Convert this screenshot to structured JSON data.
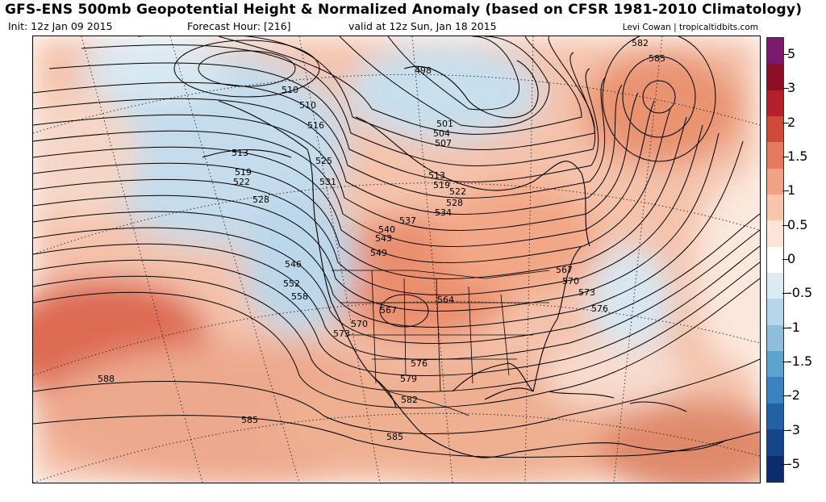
{
  "header": {
    "title": "GFS-ENS 500mb Geopotential Height & Normalized Anomaly (based on CFSR 1981-2010 Climatology)",
    "init": "Init: 12z Jan 09 2015",
    "forecast_hour": "Forecast Hour: [216]",
    "valid": "valid at 12z Sun, Jan 18 2015",
    "credit": "Levi Cowan | tropicaltidbits.com"
  },
  "colors": {
    "ocean_warm": "#f2b8a0",
    "deep_warm": "#d9604a",
    "cold": "#b9d6ea",
    "neutral": "#f7f4f2",
    "contour": "#000000"
  },
  "colorbar": {
    "colors": [
      "#7b1a6e",
      "#8b1023",
      "#b5202a",
      "#cf4a3b",
      "#e57a5e",
      "#f2a185",
      "#f8c4ac",
      "#fce4d6",
      "#ffffff",
      "#dceaf4",
      "#b8d6ea",
      "#8dbfdd",
      "#5da3cf",
      "#3a83bf",
      "#2262a4",
      "#16468a",
      "#0b2d6e"
    ],
    "labels": [
      "5",
      "3",
      "2",
      "1.5",
      "1",
      "0.5",
      "0",
      "-0.5",
      "-1",
      "-1.5",
      "-2",
      "-3",
      "-5"
    ]
  },
  "contour_labels": [
    "582",
    "585",
    "498",
    "510",
    "510",
    "516",
    "513",
    "519",
    "522",
    "528",
    "525",
    "531",
    "501",
    "504",
    "507",
    "513",
    "519",
    "522",
    "528",
    "534",
    "537",
    "540",
    "543",
    "549",
    "546",
    "552",
    "558",
    "567",
    "570",
    "573",
    "564",
    "567",
    "570",
    "573",
    "576",
    "576",
    "579",
    "582",
    "588",
    "585",
    "585"
  ]
}
